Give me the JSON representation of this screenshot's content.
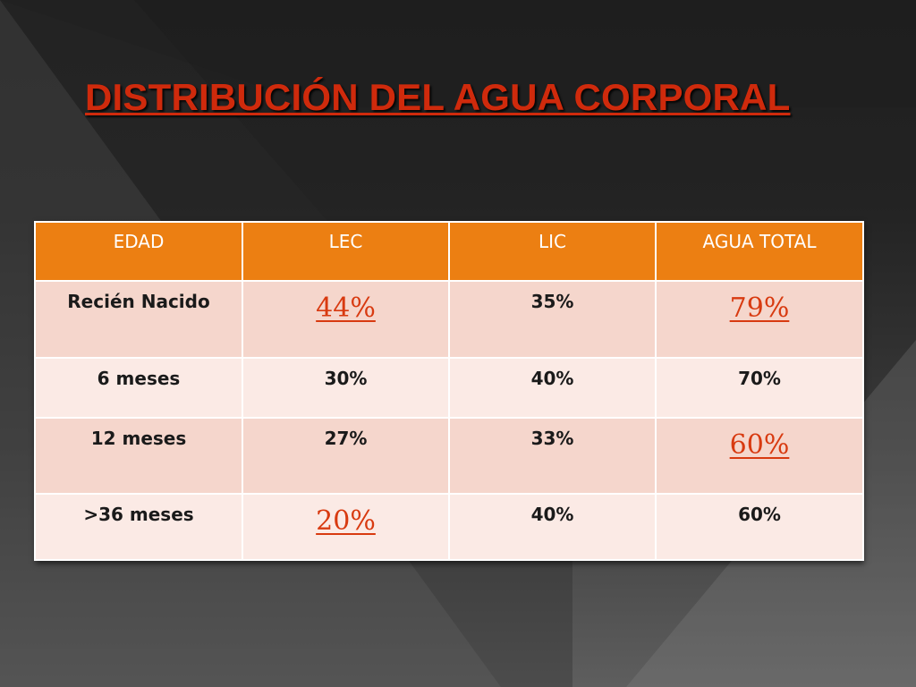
{
  "slide": {
    "title": "DISTRIBUCIÓN DEL AGUA CORPORAL"
  },
  "table": {
    "headers": [
      "EDAD",
      "LEC",
      "LIC",
      "AGUA TOTAL"
    ],
    "rows": [
      {
        "edad": "Recién Nacido",
        "lec": "44%",
        "lic": "35%",
        "agua_total": "79%"
      },
      {
        "edad": "6 meses",
        "lec": "30%",
        "lic": "40%",
        "agua_total": "70%"
      },
      {
        "edad": "12 meses",
        "lec": "27%",
        "lic": "33%",
        "agua_total": "60%"
      },
      {
        "edad": ">36 meses",
        "lec": "20%",
        "lic": "40%",
        "agua_total": "60%"
      }
    ]
  },
  "colors": {
    "title": "#cf2a0c",
    "header_fill": "#ec7f12",
    "row_fill_dark": "#f5d6cc",
    "row_fill_light": "#fbeae5",
    "highlight_value": "#d83a10"
  }
}
